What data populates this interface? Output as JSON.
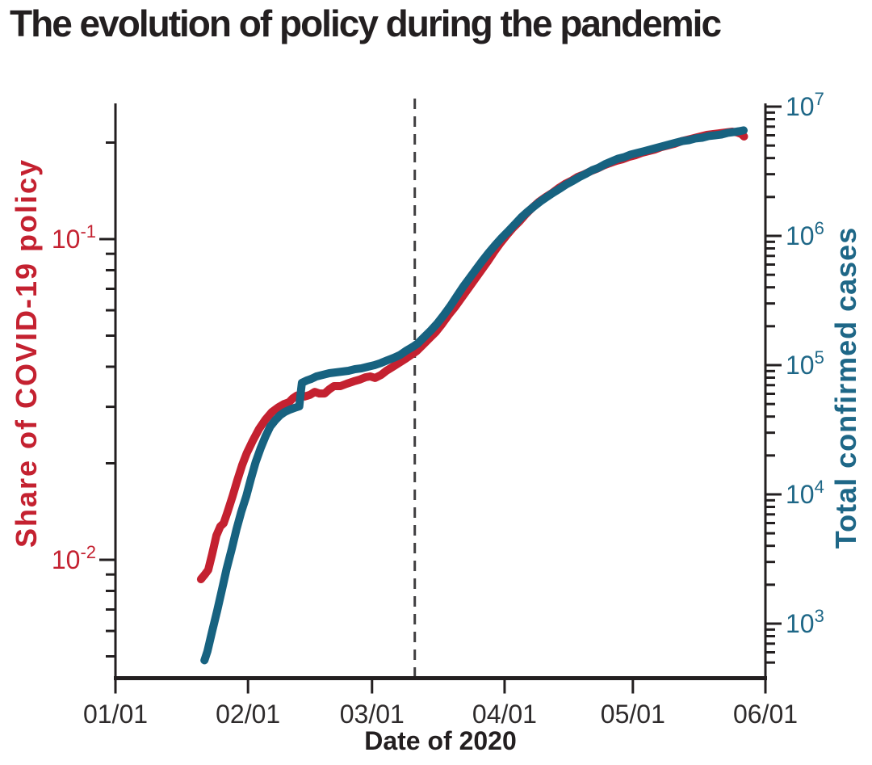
{
  "title": "The evolution of policy during the pandemic",
  "chart_data": {
    "type": "line",
    "title": "The evolution of policy during the pandemic",
    "xlabel": "Date of 2020",
    "x_unit": "days since 01/01/2020",
    "grid": false,
    "legend": "none (colored axis labels identify series)",
    "x_ticks": [
      {
        "day": 0,
        "label": "01/01"
      },
      {
        "day": 31,
        "label": "02/01"
      },
      {
        "day": 60,
        "label": "03/01"
      },
      {
        "day": 91,
        "label": "04/01"
      },
      {
        "day": 121,
        "label": "05/01"
      },
      {
        "day": 152,
        "label": "06/01"
      }
    ],
    "left_axis": {
      "label": "Share of COVID-19 policy",
      "scale": "log",
      "label_color": "#c42130",
      "tick_exponents": [
        -1,
        -2
      ],
      "range": [
        0.0043,
        0.27
      ]
    },
    "right_axis": {
      "label": "Total confirmed cases",
      "scale": "log",
      "label_color": "#1e6787",
      "tick_exponents": [
        7,
        6,
        5,
        4,
        3
      ],
      "range": [
        390,
        10600000
      ]
    },
    "vline": {
      "day": 70,
      "date": "03/11",
      "style": "dashed",
      "color": "#3f3e40"
    },
    "colors": {
      "ink": "#231f20",
      "x_tick_labels": "#2d2a2b"
    },
    "series": [
      {
        "name": "Share of COVID-19 policy",
        "axis": "left",
        "color": "#c42130",
        "points": [
          [
            20.0,
            0.0087
          ],
          [
            20.9,
            0.009
          ],
          [
            21.7,
            0.0093
          ],
          [
            22.6,
            0.0104
          ],
          [
            23.6,
            0.0119
          ],
          [
            24.5,
            0.0127
          ],
          [
            25.3,
            0.013
          ],
          [
            26.2,
            0.0141
          ],
          [
            27.4,
            0.0158
          ],
          [
            28.5,
            0.0177
          ],
          [
            29.6,
            0.0197
          ],
          [
            30.7,
            0.0215
          ],
          [
            32.1,
            0.0235
          ],
          [
            33.6,
            0.0256
          ],
          [
            35.1,
            0.0274
          ],
          [
            36.6,
            0.0289
          ],
          [
            38.1,
            0.0299
          ],
          [
            39.4,
            0.0306
          ],
          [
            40.6,
            0.031
          ],
          [
            41.5,
            0.0319
          ],
          [
            42.4,
            0.0325
          ],
          [
            43.4,
            0.0328
          ],
          [
            44.3,
            0.0323
          ],
          [
            45.5,
            0.0327
          ],
          [
            46.6,
            0.0334
          ],
          [
            47.7,
            0.033
          ],
          [
            48.9,
            0.033
          ],
          [
            50.0,
            0.034
          ],
          [
            51.1,
            0.0348
          ],
          [
            52.6,
            0.0348
          ],
          [
            54.1,
            0.0354
          ],
          [
            55.7,
            0.036
          ],
          [
            57.2,
            0.0365
          ],
          [
            58.5,
            0.0371
          ],
          [
            59.6,
            0.0373
          ],
          [
            60.7,
            0.0369
          ],
          [
            62.1,
            0.0377
          ],
          [
            63.4,
            0.0389
          ],
          [
            64.9,
            0.04
          ],
          [
            66.4,
            0.0412
          ],
          [
            67.9,
            0.0424
          ],
          [
            69.0,
            0.0434
          ],
          [
            70.4,
            0.0447
          ],
          [
            71.9,
            0.0468
          ],
          [
            73.4,
            0.049
          ],
          [
            74.9,
            0.0513
          ],
          [
            76.4,
            0.0544
          ],
          [
            77.9,
            0.058
          ],
          [
            79.4,
            0.0614
          ],
          [
            80.9,
            0.0655
          ],
          [
            82.4,
            0.0698
          ],
          [
            84.0,
            0.0748
          ],
          [
            85.5,
            0.0797
          ],
          [
            87.0,
            0.085
          ],
          [
            88.5,
            0.0911
          ],
          [
            90.0,
            0.0971
          ],
          [
            91.5,
            0.1029
          ],
          [
            93.0,
            0.1085
          ],
          [
            94.5,
            0.1136
          ],
          [
            96.0,
            0.1197
          ],
          [
            97.5,
            0.1254
          ],
          [
            99.0,
            0.1306
          ],
          [
            100.6,
            0.1352
          ],
          [
            102.1,
            0.1392
          ],
          [
            103.6,
            0.1441
          ],
          [
            105.1,
            0.1484
          ],
          [
            106.6,
            0.1519
          ],
          [
            108.1,
            0.1563
          ],
          [
            109.6,
            0.1591
          ],
          [
            111.1,
            0.1628
          ],
          [
            112.6,
            0.1657
          ],
          [
            114.1,
            0.1695
          ],
          [
            115.6,
            0.1725
          ],
          [
            117.2,
            0.1755
          ],
          [
            118.7,
            0.1776
          ],
          [
            120.2,
            0.1807
          ],
          [
            121.7,
            0.1828
          ],
          [
            123.2,
            0.186
          ],
          [
            124.7,
            0.1882
          ],
          [
            126.2,
            0.1904
          ],
          [
            127.7,
            0.1937
          ],
          [
            129.2,
            0.196
          ],
          [
            130.7,
            0.1983
          ],
          [
            132.3,
            0.2018
          ],
          [
            133.8,
            0.2041
          ],
          [
            135.3,
            0.2065
          ],
          [
            136.8,
            0.2089
          ],
          [
            138.3,
            0.2113
          ],
          [
            139.8,
            0.2126
          ],
          [
            141.3,
            0.2138
          ],
          [
            142.8,
            0.215
          ],
          [
            144.3,
            0.2163
          ],
          [
            145.4,
            0.215
          ],
          [
            146.4,
            0.2126
          ],
          [
            147.0,
            0.2089
          ]
        ]
      },
      {
        "name": "Total confirmed cases",
        "axis": "right",
        "color": "#176280",
        "points": [
          [
            20.8,
            520
          ],
          [
            21.5,
            610
          ],
          [
            22.6,
            870
          ],
          [
            23.8,
            1260
          ],
          [
            24.9,
            1830
          ],
          [
            26.0,
            2660
          ],
          [
            27.2,
            3800
          ],
          [
            28.3,
            5370
          ],
          [
            29.4,
            7290
          ],
          [
            30.6,
            9720
          ],
          [
            31.7,
            13300
          ],
          [
            32.8,
            17800
          ],
          [
            34.0,
            23000
          ],
          [
            35.1,
            28200
          ],
          [
            36.2,
            33500
          ],
          [
            37.4,
            37600
          ],
          [
            38.5,
            41000
          ],
          [
            39.6,
            43400
          ],
          [
            40.8,
            45300
          ],
          [
            41.9,
            46700
          ],
          [
            43.0,
            48000
          ],
          [
            43.3,
            60000
          ],
          [
            43.6,
            73000
          ],
          [
            44.7,
            76000
          ],
          [
            45.8,
            78300
          ],
          [
            47.0,
            81800
          ],
          [
            48.5,
            84100
          ],
          [
            50.0,
            86600
          ],
          [
            51.5,
            87900
          ],
          [
            53.0,
            89100
          ],
          [
            54.5,
            90400
          ],
          [
            56.0,
            93100
          ],
          [
            57.5,
            94400
          ],
          [
            59.0,
            97200
          ],
          [
            60.6,
            100000
          ],
          [
            62.1,
            104000
          ],
          [
            63.6,
            109000
          ],
          [
            65.1,
            114000
          ],
          [
            66.6,
            120000
          ],
          [
            68.1,
            130000
          ],
          [
            69.6,
            139000
          ],
          [
            70.7,
            147000
          ],
          [
            72.2,
            165000
          ],
          [
            73.8,
            186000
          ],
          [
            75.3,
            211000
          ],
          [
            76.8,
            244000
          ],
          [
            78.3,
            286000
          ],
          [
            79.8,
            340000
          ],
          [
            81.3,
            404000
          ],
          [
            82.8,
            471000
          ],
          [
            84.3,
            550000
          ],
          [
            85.8,
            641000
          ],
          [
            87.3,
            740000
          ],
          [
            88.9,
            855000
          ],
          [
            90.4,
            971000
          ],
          [
            91.9,
            1090000
          ],
          [
            93.4,
            1230000
          ],
          [
            94.9,
            1390000
          ],
          [
            96.4,
            1540000
          ],
          [
            97.9,
            1690000
          ],
          [
            99.4,
            1850000
          ],
          [
            100.9,
            2000000
          ],
          [
            102.4,
            2160000
          ],
          [
            104.0,
            2330000
          ],
          [
            105.5,
            2510000
          ],
          [
            107.0,
            2670000
          ],
          [
            108.5,
            2850000
          ],
          [
            110.0,
            3020000
          ],
          [
            111.5,
            3220000
          ],
          [
            113.0,
            3370000
          ],
          [
            114.5,
            3590000
          ],
          [
            116.0,
            3770000
          ],
          [
            117.5,
            3950000
          ],
          [
            119.0,
            4070000
          ],
          [
            120.5,
            4260000
          ],
          [
            122.1,
            4390000
          ],
          [
            123.6,
            4520000
          ],
          [
            125.1,
            4660000
          ],
          [
            126.6,
            4810000
          ],
          [
            128.1,
            4950000
          ],
          [
            129.6,
            5110000
          ],
          [
            131.1,
            5260000
          ],
          [
            132.6,
            5420000
          ],
          [
            134.1,
            5500000
          ],
          [
            135.6,
            5670000
          ],
          [
            137.2,
            5750000
          ],
          [
            138.7,
            5920000
          ],
          [
            140.2,
            6000000
          ],
          [
            141.7,
            6090000
          ],
          [
            143.2,
            6270000
          ],
          [
            144.7,
            6360000
          ],
          [
            145.8,
            6450000
          ],
          [
            146.9,
            6550000
          ]
        ]
      }
    ]
  }
}
